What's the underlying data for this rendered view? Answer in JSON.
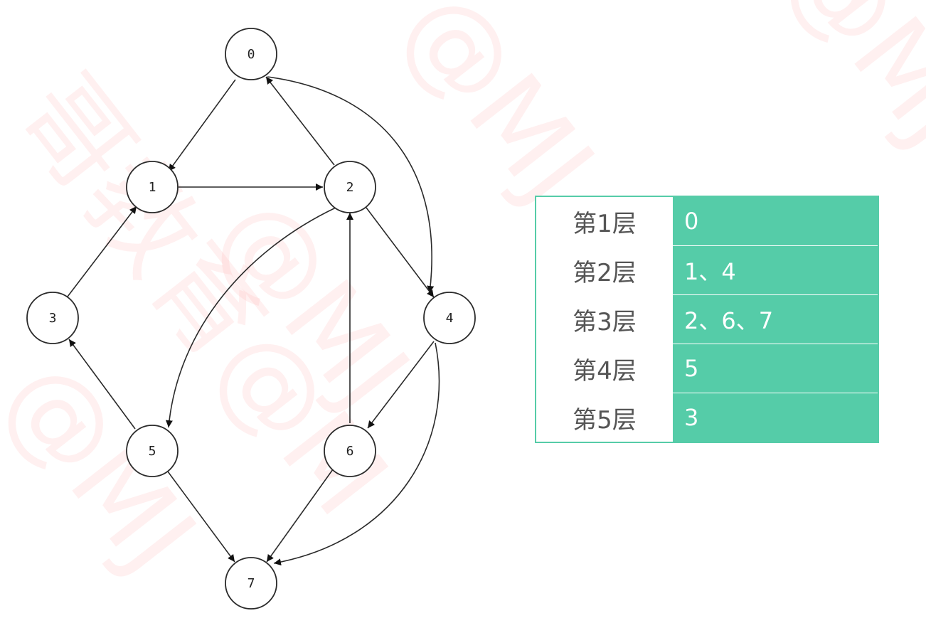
{
  "watermark": {
    "text_a": "@MJ",
    "text_b": "哥教育@M"
  },
  "graph": {
    "nodes": [
      {
        "id": "0",
        "label": "0"
      },
      {
        "id": "1",
        "label": "1"
      },
      {
        "id": "2",
        "label": "2"
      },
      {
        "id": "3",
        "label": "3"
      },
      {
        "id": "4",
        "label": "4"
      },
      {
        "id": "5",
        "label": "5"
      },
      {
        "id": "6",
        "label": "6"
      },
      {
        "id": "7",
        "label": "7"
      }
    ],
    "edges": [
      {
        "from": "0",
        "to": "1"
      },
      {
        "from": "0",
        "to": "4"
      },
      {
        "from": "1",
        "to": "2"
      },
      {
        "from": "2",
        "to": "0"
      },
      {
        "from": "2",
        "to": "4"
      },
      {
        "from": "2",
        "to": "5"
      },
      {
        "from": "3",
        "to": "1"
      },
      {
        "from": "4",
        "to": "6"
      },
      {
        "from": "4",
        "to": "7"
      },
      {
        "from": "5",
        "to": "3"
      },
      {
        "from": "5",
        "to": "7"
      },
      {
        "from": "6",
        "to": "2"
      },
      {
        "from": "6",
        "to": "7"
      }
    ]
  },
  "levels": [
    {
      "label": "第1层",
      "value": "0"
    },
    {
      "label": "第2层",
      "value": "1、4"
    },
    {
      "label": "第3层",
      "value": "2、6、7"
    },
    {
      "label": "第4层",
      "value": "5"
    },
    {
      "label": "第5层",
      "value": "3"
    }
  ]
}
